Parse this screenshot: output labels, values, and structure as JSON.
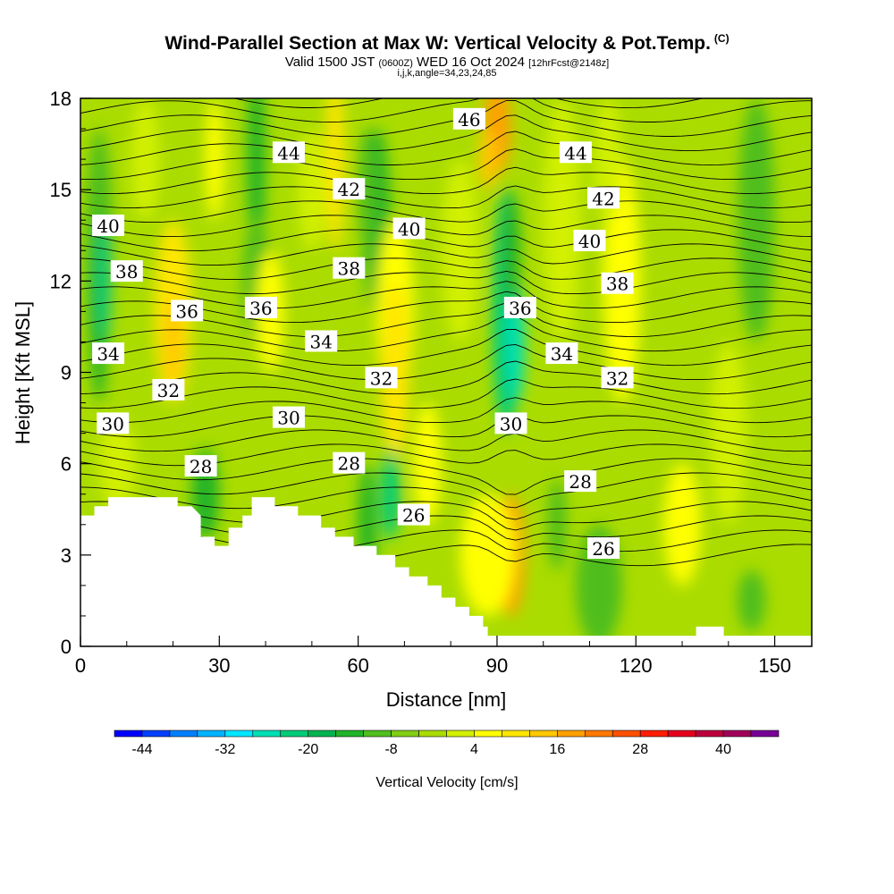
{
  "header": {
    "title": "Wind-Parallel Section at Max W: Vertical Velocity & Pot.Temp.",
    "copyright": "(C)",
    "subtitle_a": "Valid 1500 JST",
    "subtitle_b": "(0600Z)",
    "subtitle_c": "WED 16 Oct 2024",
    "subtitle_d": "[12hrFcst@2148z]",
    "subtitle2": "i,j,k,angle=34,23,24,85"
  },
  "chart_data": {
    "type": "heatmap",
    "title": "Wind-Parallel Section at Max W: Vertical Velocity & Pot.Temp.",
    "xlabel": "Distance [nm]",
    "ylabel": "Height [Kft MSL]",
    "xlim": [
      0,
      158
    ],
    "ylim": [
      0,
      18
    ],
    "x_ticks": [
      0,
      30,
      60,
      90,
      120,
      150
    ],
    "y_ticks": [
      0,
      3,
      6,
      9,
      12,
      15,
      18
    ],
    "colorbar": {
      "label": "Vertical Velocity [cm/s]",
      "tick_labels": [
        -44,
        -32,
        -20,
        -8,
        4,
        16,
        28,
        40
      ],
      "levels": [
        -48,
        -44,
        -40,
        -36,
        -32,
        -28,
        -24,
        -20,
        -16,
        -12,
        -8,
        -4,
        0,
        4,
        8,
        12,
        16,
        20,
        24,
        28,
        32,
        36,
        40,
        44,
        48
      ],
      "colors": [
        "#0000ff",
        "#0040ff",
        "#0080ff",
        "#00b4ff",
        "#00e6ff",
        "#00e0b4",
        "#00cc78",
        "#00b450",
        "#20b428",
        "#50be1e",
        "#82cd14",
        "#aadc00",
        "#d2f000",
        "#ffff00",
        "#ffe600",
        "#ffc800",
        "#ffa000",
        "#ff7800",
        "#ff5000",
        "#ff1e00",
        "#e6001e",
        "#be003c",
        "#a0005a",
        "#780096"
      ]
    },
    "theta_contour_labels": [
      {
        "value": "46",
        "x": 84,
        "y": 17.3
      },
      {
        "value": "44",
        "x": 45,
        "y": 16.2
      },
      {
        "value": "44",
        "x": 107,
        "y": 16.2
      },
      {
        "value": "42",
        "x": 58,
        "y": 15.0
      },
      {
        "value": "42",
        "x": 113,
        "y": 14.7
      },
      {
        "value": "40",
        "x": 6,
        "y": 13.8
      },
      {
        "value": "40",
        "x": 71,
        "y": 13.7
      },
      {
        "value": "40",
        "x": 110,
        "y": 13.3
      },
      {
        "value": "38",
        "x": 10,
        "y": 12.3
      },
      {
        "value": "38",
        "x": 58,
        "y": 12.4
      },
      {
        "value": "38",
        "x": 116,
        "y": 11.9
      },
      {
        "value": "36",
        "x": 23,
        "y": 11.0
      },
      {
        "value": "36",
        "x": 39,
        "y": 11.1
      },
      {
        "value": "36",
        "x": 95,
        "y": 11.1
      },
      {
        "value": "34",
        "x": 52,
        "y": 10.0
      },
      {
        "value": "34",
        "x": 6,
        "y": 9.6
      },
      {
        "value": "34",
        "x": 104,
        "y": 9.6
      },
      {
        "value": "32",
        "x": 19,
        "y": 8.4
      },
      {
        "value": "32",
        "x": 65,
        "y": 8.8
      },
      {
        "value": "32",
        "x": 116,
        "y": 8.8
      },
      {
        "value": "30",
        "x": 7,
        "y": 7.3
      },
      {
        "value": "30",
        "x": 45,
        "y": 7.5
      },
      {
        "value": "30",
        "x": 93,
        "y": 7.3
      },
      {
        "value": "28",
        "x": 26,
        "y": 5.9
      },
      {
        "value": "28",
        "x": 58,
        "y": 6.0
      },
      {
        "value": "28",
        "x": 108,
        "y": 5.4
      },
      {
        "value": "26",
        "x": 72,
        "y": 4.3
      },
      {
        "value": "26",
        "x": 113,
        "y": 3.2
      }
    ],
    "terrain_profile": [
      [
        0,
        4.3
      ],
      [
        3,
        4.3
      ],
      [
        3,
        4.6
      ],
      [
        6,
        4.6
      ],
      [
        6,
        4.9
      ],
      [
        21,
        4.9
      ],
      [
        21,
        4.6
      ],
      [
        24,
        4.6
      ],
      [
        26,
        4.3
      ],
      [
        26,
        3.6
      ],
      [
        29,
        3.6
      ],
      [
        29,
        3.3
      ],
      [
        32,
        3.3
      ],
      [
        32,
        3.9
      ],
      [
        35,
        3.9
      ],
      [
        35,
        4.3
      ],
      [
        37,
        4.3
      ],
      [
        37,
        4.9
      ],
      [
        42,
        4.9
      ],
      [
        42,
        4.6
      ],
      [
        47,
        4.6
      ],
      [
        47,
        4.3
      ],
      [
        52,
        4.3
      ],
      [
        52,
        3.9
      ],
      [
        55,
        3.9
      ],
      [
        55,
        3.6
      ],
      [
        59,
        3.6
      ],
      [
        59,
        3.3
      ],
      [
        64,
        3.3
      ],
      [
        64,
        3.0
      ],
      [
        68,
        3.0
      ],
      [
        68,
        2.6
      ],
      [
        71,
        2.6
      ],
      [
        71,
        2.3
      ],
      [
        75,
        2.3
      ],
      [
        75,
        2.0
      ],
      [
        78,
        2.0
      ],
      [
        78,
        1.6
      ],
      [
        81,
        1.6
      ],
      [
        81,
        1.3
      ],
      [
        84,
        1.3
      ],
      [
        84,
        1.0
      ],
      [
        87,
        1.0
      ],
      [
        87,
        0.65
      ],
      [
        88,
        0.65
      ],
      [
        88,
        0.35
      ],
      [
        133,
        0.35
      ],
      [
        133,
        0.65
      ],
      [
        139,
        0.65
      ],
      [
        139,
        0.35
      ],
      [
        158,
        0.35
      ],
      [
        158,
        0
      ]
    ]
  }
}
